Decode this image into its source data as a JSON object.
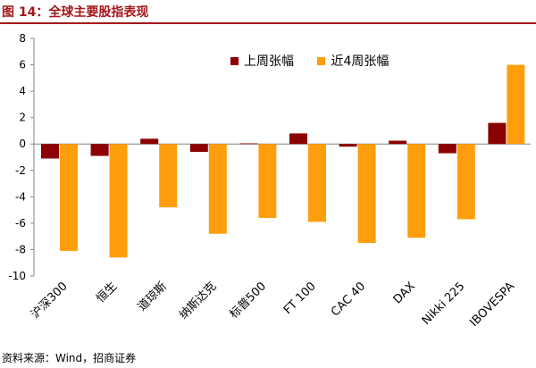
{
  "figure": {
    "title": "图 14：全球主要股指表现",
    "source": "资料来源：Wind，招商证券"
  },
  "colors": {
    "title": "#a4161a",
    "series": [
      "#8b0000",
      "#ff9e0d"
    ]
  },
  "chart_data": {
    "type": "bar",
    "categories": [
      "沪深300",
      "恒生",
      "道琼斯",
      "纳斯达克",
      "标普500",
      "FT 100",
      "CAC 40",
      "DAX",
      "Nikki 225",
      "IBOVESPA"
    ],
    "series": [
      {
        "name": "上周张幅",
        "values": [
          -1.1,
          -0.9,
          0.4,
          -0.6,
          0.05,
          0.8,
          -0.2,
          0.25,
          -0.7,
          1.6
        ]
      },
      {
        "name": "近4周张幅",
        "values": [
          -8.1,
          -8.6,
          -4.8,
          -6.8,
          -5.6,
          -5.9,
          -7.5,
          -7.1,
          -5.7,
          6.0
        ]
      }
    ],
    "ylim": [
      -10,
      8
    ],
    "yticks": [
      -10,
      -8,
      -6,
      -4,
      -2,
      0,
      2,
      4,
      6,
      8
    ],
    "legend_position": "top-right",
    "grid": false
  }
}
